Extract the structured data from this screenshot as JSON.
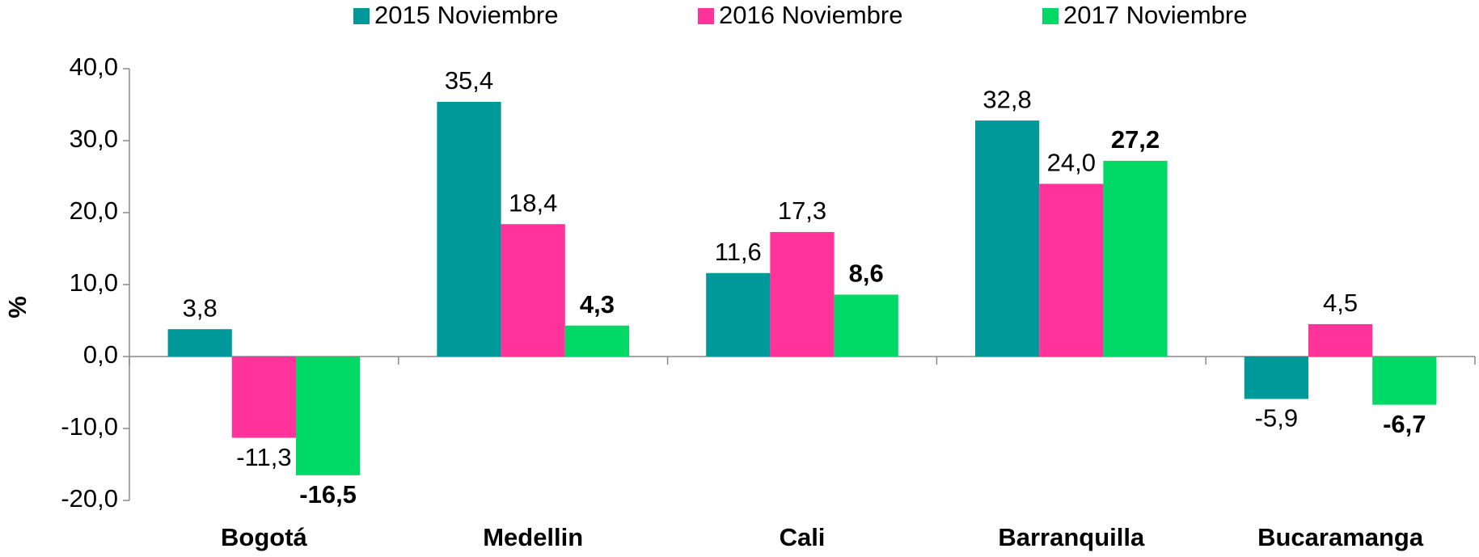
{
  "chart_data": {
    "type": "bar",
    "categories": [
      "Bogotá",
      "Medellin",
      "Cali",
      "Barranquilla",
      "Bucaramanga"
    ],
    "y_label": "%",
    "series": [
      {
        "name": "2015 Noviembre",
        "color": "#009999",
        "values": [
          3.8,
          35.4,
          11.6,
          32.8,
          -5.9
        ],
        "value_labels": [
          "3,8",
          "35,4",
          "11,6",
          "32,8",
          "-5,9"
        ]
      },
      {
        "name": "2016 Noviembre",
        "color": "#ff3399",
        "values": [
          -11.3,
          18.4,
          17.3,
          24.0,
          4.5
        ],
        "value_labels": [
          "-11,3",
          "18,4",
          "17,3",
          "24,0",
          "4,5"
        ]
      },
      {
        "name": "2017 Noviembre",
        "color": "#00d966",
        "values": [
          -16.5,
          4.3,
          8.6,
          27.2,
          -6.7
        ],
        "value_labels": [
          "-16,5",
          "4,3",
          "8,6",
          "27,2",
          "-6,7"
        ],
        "bold_labels": true
      }
    ],
    "ylim": [
      -20,
      40
    ],
    "yticks": [
      {
        "value": -20,
        "label": "-20,0"
      },
      {
        "value": -10,
        "label": "-10,0"
      },
      {
        "value": 0,
        "label": "0,0"
      },
      {
        "value": 10,
        "label": "10,0"
      },
      {
        "value": 20,
        "label": "20,0"
      },
      {
        "value": 30,
        "label": "30,0"
      },
      {
        "value": 40,
        "label": "40,0"
      }
    ],
    "legend": "top"
  }
}
